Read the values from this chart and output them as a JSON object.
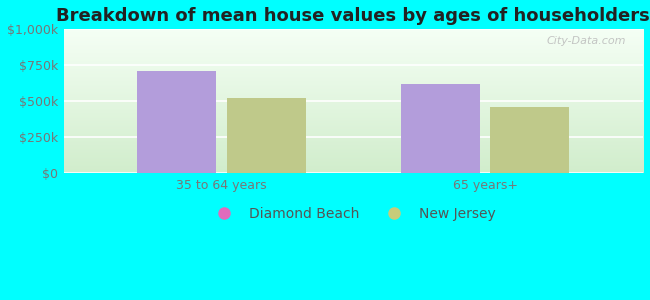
{
  "title": "Breakdown of mean house values by ages of householders",
  "categories": [
    "35 to 64 years",
    "65 years+"
  ],
  "series": {
    "Diamond Beach": [
      710000,
      620000
    ],
    "New Jersey": [
      520000,
      460000
    ]
  },
  "series_colors": {
    "Diamond Beach": "#b39ddb",
    "New Jersey": "#bfc98a"
  },
  "legend_marker_colors": {
    "Diamond Beach": "#e06bbc",
    "New Jersey": "#c8cc7a"
  },
  "ylim": [
    0,
    1000000
  ],
  "yticks": [
    0,
    250000,
    500000,
    750000,
    1000000
  ],
  "ytick_labels": [
    "$0",
    "$250k",
    "$500k",
    "$750k",
    "$1,000k"
  ],
  "plot_bg_top": "#f5fff5",
  "plot_bg_bottom": "#d8f0d0",
  "outer_background": "#00ffff",
  "bar_width": 0.3,
  "title_fontsize": 13,
  "tick_fontsize": 9,
  "legend_fontsize": 10,
  "watermark": "City-Data.com"
}
